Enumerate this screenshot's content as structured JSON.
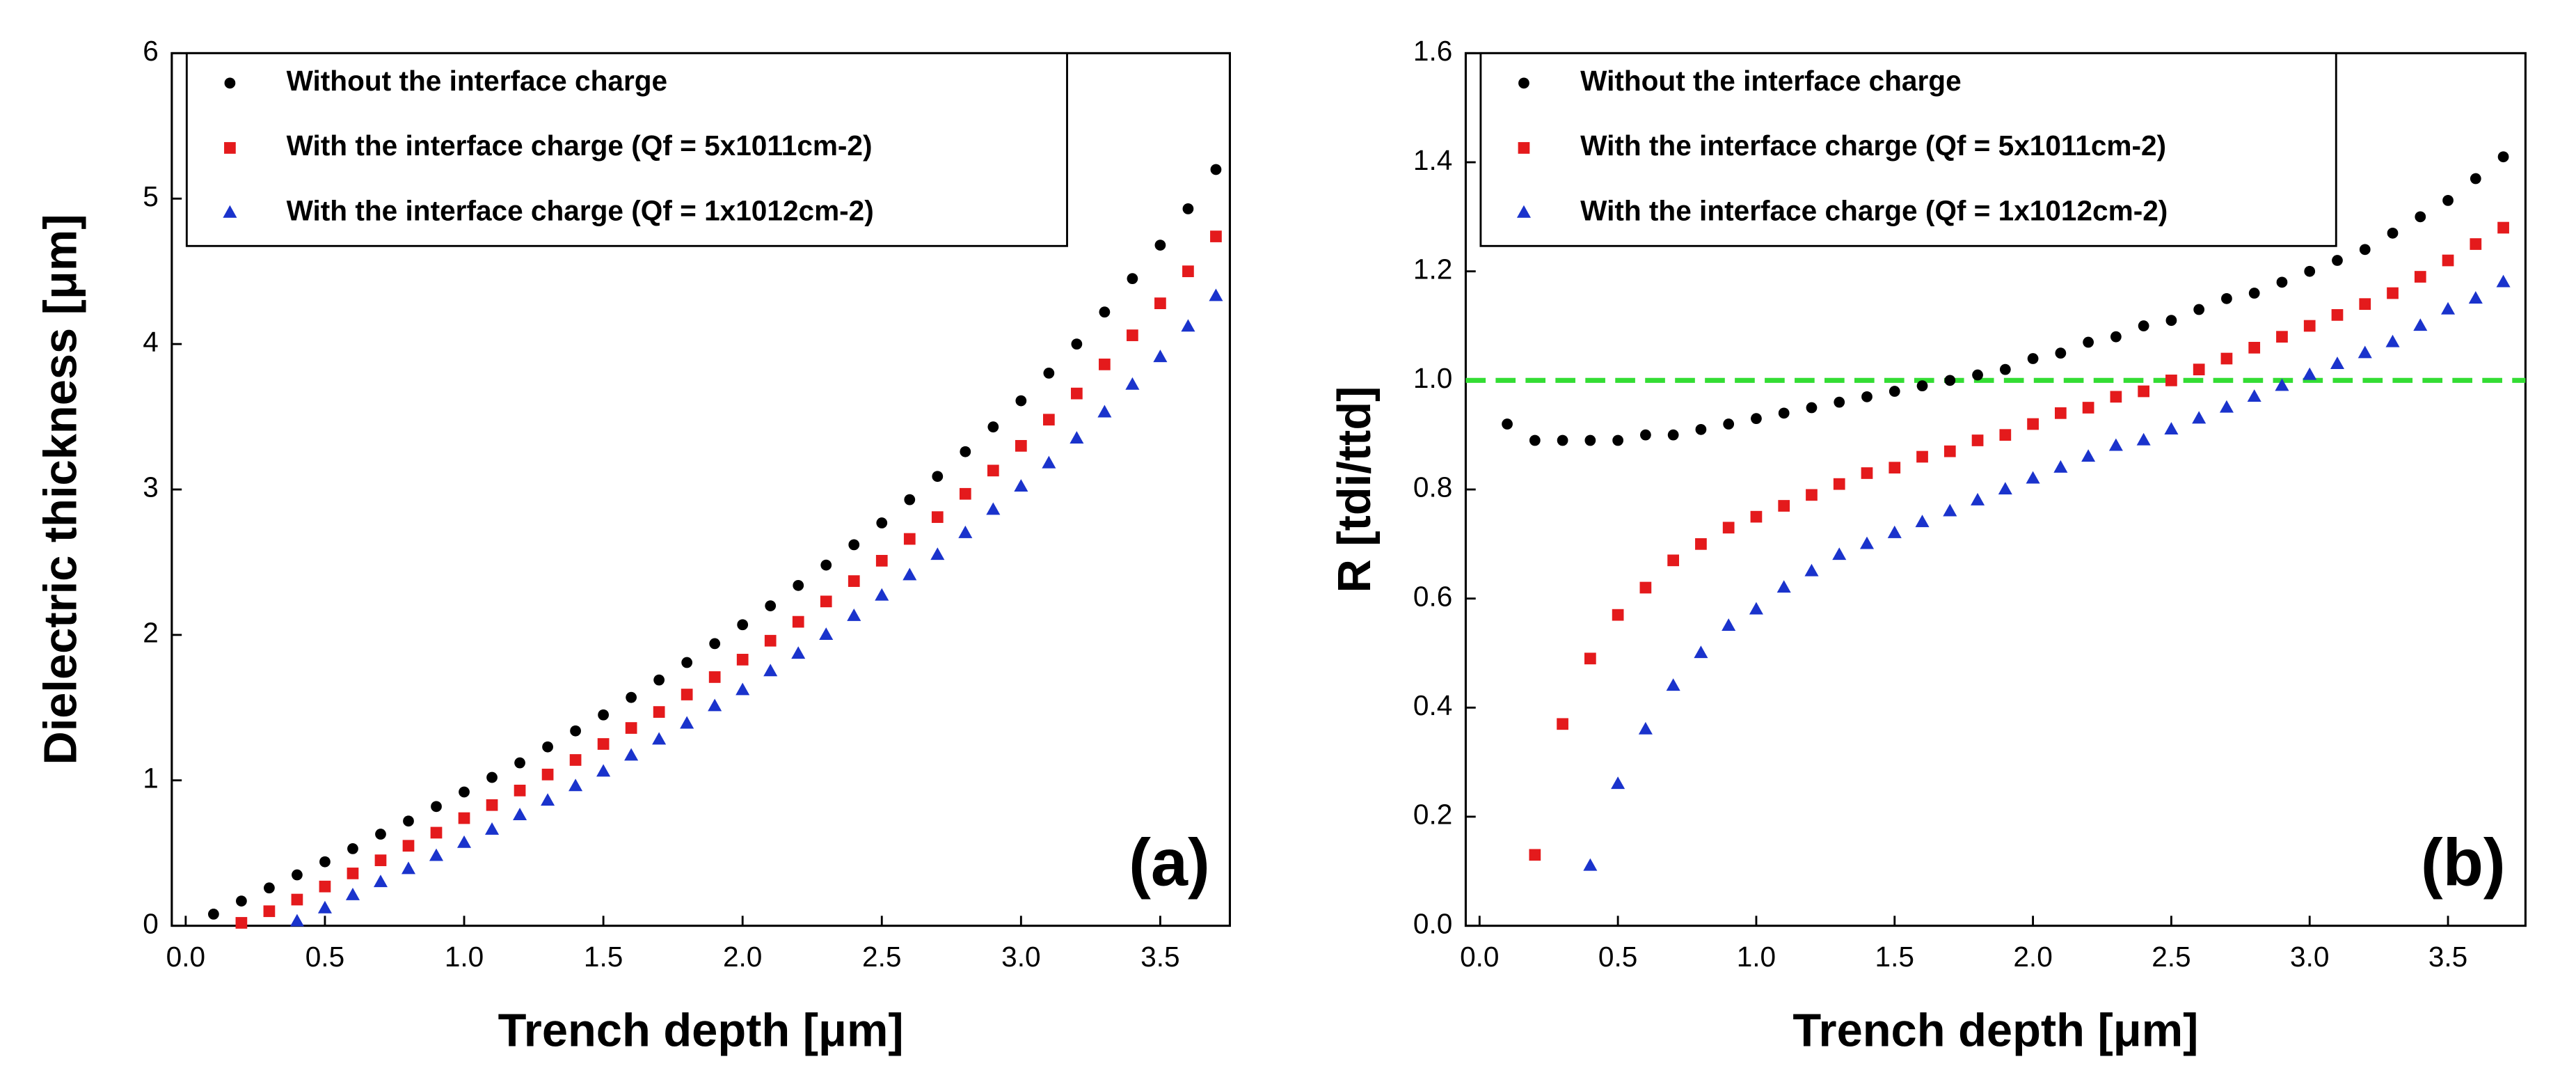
{
  "chart_data": [
    {
      "type": "scatter",
      "annotation": "(a)",
      "xlabel": "Trench depth [μm]",
      "ylabel": "Dielectric thickness [μm]",
      "xlim": [
        -0.05,
        3.75
      ],
      "ylim": [
        0,
        6
      ],
      "xticks": [
        {
          "value": 0,
          "label": "0.0"
        },
        0.5,
        {
          "value": 1,
          "label": "1.0"
        },
        1.5,
        {
          "value": 2,
          "label": "2.0"
        },
        2.5,
        {
          "value": 3,
          "label": "3.0"
        },
        3.5
      ],
      "yticks": [
        0,
        1,
        2,
        3,
        4,
        5,
        6
      ],
      "legend": "upper left",
      "series": [
        {
          "name": "Without the interface charge",
          "color": "#000000",
          "marker": "circle",
          "x": [
            0.1,
            0.2,
            0.3,
            0.4,
            0.5,
            0.6,
            0.7,
            0.8,
            0.9,
            1.0,
            1.1,
            1.2,
            1.3,
            1.4,
            1.5,
            1.6,
            1.7,
            1.8,
            1.9,
            2.0,
            2.1,
            2.2,
            2.3,
            2.4,
            2.5,
            2.6,
            2.7,
            2.8,
            2.9,
            3.0,
            3.1,
            3.2,
            3.3,
            3.4,
            3.5,
            3.6,
            3.7
          ],
          "values": [
            0.08,
            0.17,
            0.26,
            0.35,
            0.44,
            0.53,
            0.63,
            0.72,
            0.82,
            0.92,
            1.02,
            1.12,
            1.23,
            1.34,
            1.45,
            1.57,
            1.69,
            1.81,
            1.94,
            2.07,
            2.2,
            2.34,
            2.48,
            2.62,
            2.77,
            2.93,
            3.09,
            3.26,
            3.43,
            3.61,
            3.8,
            4.0,
            4.22,
            4.45,
            4.68,
            4.93,
            5.2
          ]
        },
        {
          "name": "With the interface charge (Qf = 5x1011cm-2)",
          "color": "#e41a1c",
          "marker": "square",
          "x": [
            0.2,
            0.3,
            0.4,
            0.5,
            0.6,
            0.7,
            0.8,
            0.9,
            1.0,
            1.1,
            1.2,
            1.3,
            1.4,
            1.5,
            1.6,
            1.7,
            1.8,
            1.9,
            2.0,
            2.1,
            2.2,
            2.3,
            2.4,
            2.5,
            2.6,
            2.7,
            2.8,
            2.9,
            3.0,
            3.1,
            3.2,
            3.3,
            3.4,
            3.5,
            3.6,
            3.7
          ],
          "values": [
            0.02,
            0.1,
            0.18,
            0.27,
            0.36,
            0.45,
            0.55,
            0.64,
            0.74,
            0.83,
            0.93,
            1.04,
            1.14,
            1.25,
            1.36,
            1.47,
            1.59,
            1.71,
            1.83,
            1.96,
            2.09,
            2.23,
            2.37,
            2.51,
            2.66,
            2.81,
            2.97,
            3.13,
            3.3,
            3.48,
            3.66,
            3.86,
            4.06,
            4.28,
            4.5,
            4.74
          ]
        },
        {
          "name": "With the interface charge (Qf = 1x1012cm-2)",
          "color": "#1a33cc",
          "marker": "triangle",
          "x": [
            0.4,
            0.5,
            0.6,
            0.7,
            0.8,
            0.9,
            1.0,
            1.1,
            1.2,
            1.3,
            1.4,
            1.5,
            1.6,
            1.7,
            1.8,
            1.9,
            2.0,
            2.1,
            2.2,
            2.3,
            2.4,
            2.5,
            2.6,
            2.7,
            2.8,
            2.9,
            3.0,
            3.1,
            3.2,
            3.3,
            3.4,
            3.5,
            3.6,
            3.7
          ],
          "values": [
            0.03,
            0.12,
            0.21,
            0.3,
            0.39,
            0.48,
            0.57,
            0.66,
            0.76,
            0.86,
            0.96,
            1.06,
            1.17,
            1.28,
            1.39,
            1.51,
            1.62,
            1.75,
            1.87,
            2.0,
            2.13,
            2.27,
            2.41,
            2.55,
            2.7,
            2.86,
            3.02,
            3.18,
            3.35,
            3.53,
            3.72,
            3.91,
            4.12,
            4.33
          ]
        }
      ]
    },
    {
      "type": "scatter",
      "annotation": "(b)",
      "xlabel": "Trench depth [μm]",
      "ylabel": "R [tdi/ttd]",
      "xlim": [
        -0.05,
        3.78
      ],
      "ylim": [
        0,
        1.6
      ],
      "xticks": [
        {
          "value": 0,
          "label": "0.0"
        },
        0.5,
        {
          "value": 1,
          "label": "1.0"
        },
        1.5,
        {
          "value": 2,
          "label": "2.0"
        },
        2.5,
        {
          "value": 3,
          "label": "3.0"
        },
        3.5
      ],
      "yticks": [
        {
          "value": 0,
          "label": "0.0"
        },
        0.2,
        0.4,
        0.6,
        0.8,
        {
          "value": 1,
          "label": "1.0"
        },
        1.2,
        1.4,
        1.6
      ],
      "legend": "upper left",
      "reference_line": {
        "value": 1.0,
        "color": "#33dd33"
      },
      "series": [
        {
          "name": "Without the interface charge",
          "color": "#000000",
          "marker": "circle",
          "x": [
            0.1,
            0.2,
            0.3,
            0.4,
            0.5,
            0.6,
            0.7,
            0.8,
            0.9,
            1.0,
            1.1,
            1.2,
            1.3,
            1.4,
            1.5,
            1.6,
            1.7,
            1.8,
            1.9,
            2.0,
            2.1,
            2.2,
            2.3,
            2.4,
            2.5,
            2.6,
            2.7,
            2.8,
            2.9,
            3.0,
            3.1,
            3.2,
            3.3,
            3.4,
            3.5,
            3.6,
            3.7
          ],
          "values": [
            0.92,
            0.89,
            0.89,
            0.89,
            0.89,
            0.9,
            0.9,
            0.91,
            0.92,
            0.93,
            0.94,
            0.95,
            0.96,
            0.97,
            0.98,
            0.99,
            1.0,
            1.01,
            1.02,
            1.04,
            1.05,
            1.07,
            1.08,
            1.1,
            1.11,
            1.13,
            1.15,
            1.16,
            1.18,
            1.2,
            1.22,
            1.24,
            1.27,
            1.3,
            1.33,
            1.37,
            1.41
          ]
        },
        {
          "name": "With the interface charge (Qf = 5x1011cm-2)",
          "color": "#e41a1c",
          "marker": "square",
          "x": [
            0.2,
            0.3,
            0.4,
            0.5,
            0.6,
            0.7,
            0.8,
            0.9,
            1.0,
            1.1,
            1.2,
            1.3,
            1.4,
            1.5,
            1.6,
            1.7,
            1.8,
            1.9,
            2.0,
            2.1,
            2.2,
            2.3,
            2.4,
            2.5,
            2.6,
            2.7,
            2.8,
            2.9,
            3.0,
            3.1,
            3.2,
            3.3,
            3.4,
            3.5,
            3.6,
            3.7
          ],
          "values": [
            0.13,
            0.37,
            0.49,
            0.57,
            0.62,
            0.67,
            0.7,
            0.73,
            0.75,
            0.77,
            0.79,
            0.81,
            0.83,
            0.84,
            0.86,
            0.87,
            0.89,
            0.9,
            0.92,
            0.94,
            0.95,
            0.97,
            0.98,
            1.0,
            1.02,
            1.04,
            1.06,
            1.08,
            1.1,
            1.12,
            1.14,
            1.16,
            1.19,
            1.22,
            1.25,
            1.28
          ]
        },
        {
          "name": "With the interface charge (Qf = 1x1012cm-2)",
          "color": "#1a33cc",
          "marker": "triangle",
          "x": [
            0.4,
            0.5,
            0.6,
            0.7,
            0.8,
            0.9,
            1.0,
            1.1,
            1.2,
            1.3,
            1.4,
            1.5,
            1.6,
            1.7,
            1.8,
            1.9,
            2.0,
            2.1,
            2.2,
            2.3,
            2.4,
            2.5,
            2.6,
            2.7,
            2.8,
            2.9,
            3.0,
            3.1,
            3.2,
            3.3,
            3.4,
            3.5,
            3.6,
            3.7
          ],
          "values": [
            0.11,
            0.26,
            0.36,
            0.44,
            0.5,
            0.55,
            0.58,
            0.62,
            0.65,
            0.68,
            0.7,
            0.72,
            0.74,
            0.76,
            0.78,
            0.8,
            0.82,
            0.84,
            0.86,
            0.88,
            0.89,
            0.91,
            0.93,
            0.95,
            0.97,
            0.99,
            1.01,
            1.03,
            1.05,
            1.07,
            1.1,
            1.13,
            1.15,
            1.18
          ]
        }
      ]
    }
  ]
}
